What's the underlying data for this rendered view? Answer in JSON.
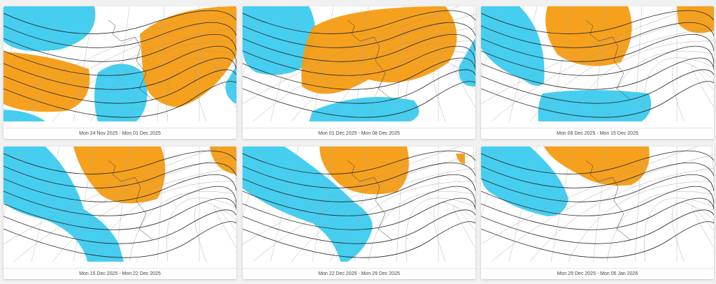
{
  "panels": [
    {
      "caption": "Mon 24 Nov 2025 - Mon 01 Dec 2025"
    },
    {
      "caption": "Mon 01 Dec 2025 - Mon 08 Dec 2025"
    },
    {
      "caption": "Mon 08 Dec 2025 - Mon 15 Dec 2025"
    },
    {
      "caption": "Mon 15 Dec 2025 - Mon 22 Dec 2025"
    },
    {
      "caption": "Mon 22 Dec 2025 - Mon 29 Dec 2025"
    },
    {
      "caption": "Mon 29 Dec 2025 - Mon 05 Jan 2026"
    }
  ]
}
